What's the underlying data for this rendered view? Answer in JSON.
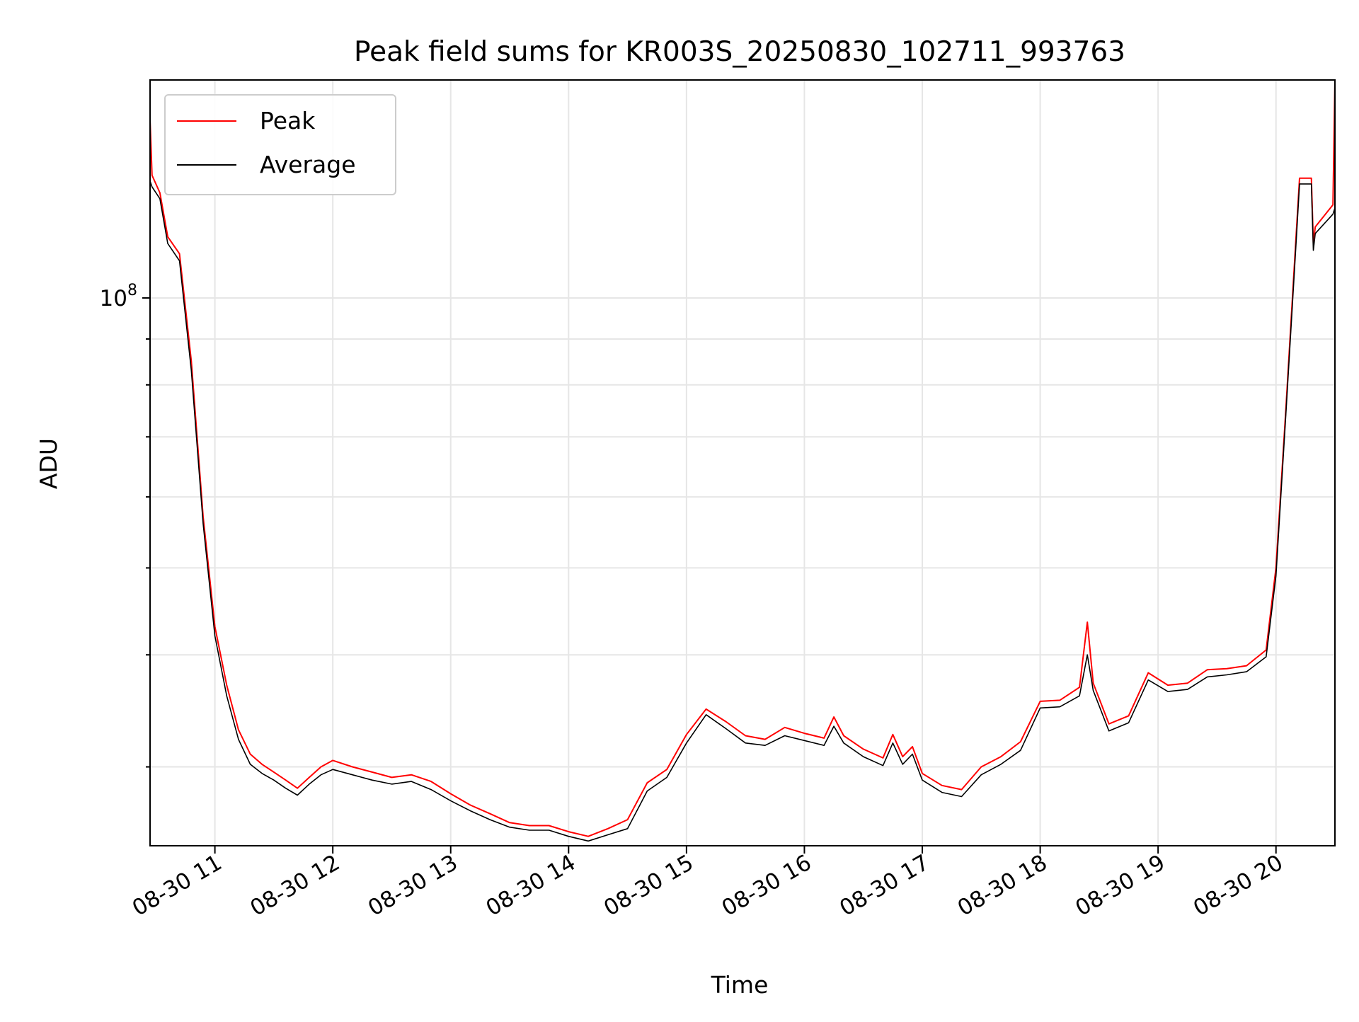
{
  "chart_data": {
    "type": "line",
    "title": "Peak field sums for KR003S_20250830_102711_993763",
    "xlabel": "Time",
    "ylabel": "ADU",
    "x_scale": "time",
    "y_scale": "log",
    "xlim": [
      "2025-08-30 10:27",
      "2025-08-30 20:30"
    ],
    "ylim": [
      24500000,
      175000000
    ],
    "x_ticks": [
      "08-30 11",
      "08-30 12",
      "08-30 13",
      "08-30 14",
      "08-30 15",
      "08-30 16",
      "08-30 17",
      "08-30 18",
      "08-30 19",
      "08-30 20"
    ],
    "y_ticks": [
      {
        "value": 100000000,
        "label_base": "10",
        "label_exp": "8"
      }
    ],
    "y_minor_ticks": [
      30000000,
      40000000,
      50000000,
      60000000,
      70000000,
      80000000,
      90000000
    ],
    "grid": true,
    "legend_position": "upper-left",
    "series": [
      {
        "name": "Peak",
        "color": "#ff0000",
        "points": [
          [
            "2025-08-30 10:27",
            158000000
          ],
          [
            "2025-08-30 10:28",
            137000000
          ],
          [
            "2025-08-30 10:32",
            131000000
          ],
          [
            "2025-08-30 10:36",
            117000000
          ],
          [
            "2025-08-30 10:42",
            112000000
          ],
          [
            "2025-08-30 10:48",
            85000000
          ],
          [
            "2025-08-30 10:54",
            57000000
          ],
          [
            "2025-08-30 11:00",
            43000000
          ],
          [
            "2025-08-30 11:06",
            37000000
          ],
          [
            "2025-08-30 11:12",
            33000000
          ],
          [
            "2025-08-30 11:18",
            31000000
          ],
          [
            "2025-08-30 11:24",
            30200000
          ],
          [
            "2025-08-30 11:30",
            29600000
          ],
          [
            "2025-08-30 11:36",
            29000000
          ],
          [
            "2025-08-30 11:42",
            28400000
          ],
          [
            "2025-08-30 11:48",
            29200000
          ],
          [
            "2025-08-30 11:54",
            30000000
          ],
          [
            "2025-08-30 12:00",
            30500000
          ],
          [
            "2025-08-30 12:10",
            30000000
          ],
          [
            "2025-08-30 12:20",
            29600000
          ],
          [
            "2025-08-30 12:30",
            29200000
          ],
          [
            "2025-08-30 12:40",
            29400000
          ],
          [
            "2025-08-30 12:50",
            28900000
          ],
          [
            "2025-08-30 13:00",
            28000000
          ],
          [
            "2025-08-30 13:10",
            27200000
          ],
          [
            "2025-08-30 13:20",
            26600000
          ],
          [
            "2025-08-30 13:30",
            26000000
          ],
          [
            "2025-08-30 13:40",
            25800000
          ],
          [
            "2025-08-30 13:50",
            25800000
          ],
          [
            "2025-08-30 14:00",
            25400000
          ],
          [
            "2025-08-30 14:10",
            25100000
          ],
          [
            "2025-08-30 14:20",
            25600000
          ],
          [
            "2025-08-30 14:30",
            26200000
          ],
          [
            "2025-08-30 14:40",
            28800000
          ],
          [
            "2025-08-30 14:50",
            29800000
          ],
          [
            "2025-08-30 15:00",
            32600000
          ],
          [
            "2025-08-30 15:10",
            34800000
          ],
          [
            "2025-08-30 15:20",
            33700000
          ],
          [
            "2025-08-30 15:30",
            32500000
          ],
          [
            "2025-08-30 15:40",
            32200000
          ],
          [
            "2025-08-30 15:50",
            33200000
          ],
          [
            "2025-08-30 16:00",
            32700000
          ],
          [
            "2025-08-30 16:10",
            32300000
          ],
          [
            "2025-08-30 16:15",
            34100000
          ],
          [
            "2025-08-30 16:20",
            32500000
          ],
          [
            "2025-08-30 16:30",
            31400000
          ],
          [
            "2025-08-30 16:40",
            30700000
          ],
          [
            "2025-08-30 16:45",
            32600000
          ],
          [
            "2025-08-30 16:50",
            30800000
          ],
          [
            "2025-08-30 16:55",
            31600000
          ],
          [
            "2025-08-30 17:00",
            29500000
          ],
          [
            "2025-08-30 17:10",
            28600000
          ],
          [
            "2025-08-30 17:20",
            28300000
          ],
          [
            "2025-08-30 17:30",
            30000000
          ],
          [
            "2025-08-30 17:40",
            30800000
          ],
          [
            "2025-08-30 17:50",
            32000000
          ],
          [
            "2025-08-30 18:00",
            35500000
          ],
          [
            "2025-08-30 18:10",
            35600000
          ],
          [
            "2025-08-30 18:20",
            36800000
          ],
          [
            "2025-08-30 18:24",
            43500000
          ],
          [
            "2025-08-30 18:27",
            37200000
          ],
          [
            "2025-08-30 18:35",
            33500000
          ],
          [
            "2025-08-30 18:45",
            34200000
          ],
          [
            "2025-08-30 18:55",
            38200000
          ],
          [
            "2025-08-30 19:05",
            37000000
          ],
          [
            "2025-08-30 19:15",
            37200000
          ],
          [
            "2025-08-30 19:25",
            38500000
          ],
          [
            "2025-08-30 19:35",
            38600000
          ],
          [
            "2025-08-30 19:45",
            38900000
          ],
          [
            "2025-08-30 19:55",
            40500000
          ],
          [
            "2025-08-30 20:00",
            50000000
          ],
          [
            "2025-08-30 20:05",
            75000000
          ],
          [
            "2025-08-30 20:10",
            115000000
          ],
          [
            "2025-08-30 20:12",
            136000000
          ],
          [
            "2025-08-30 20:18",
            136000000
          ],
          [
            "2025-08-30 20:19",
            115000000
          ],
          [
            "2025-08-30 20:20",
            120000000
          ],
          [
            "2025-08-30 20:29",
            127000000
          ],
          [
            "2025-08-30 20:30",
            175000000
          ]
        ]
      },
      {
        "name": "Average",
        "color": "#000000",
        "points": [
          [
            "2025-08-30 10:27",
            135000000
          ],
          [
            "2025-08-30 10:28",
            133000000
          ],
          [
            "2025-08-30 10:32",
            129000000
          ],
          [
            "2025-08-30 10:36",
            115000000
          ],
          [
            "2025-08-30 10:42",
            110000000
          ],
          [
            "2025-08-30 10:48",
            83000000
          ],
          [
            "2025-08-30 10:54",
            56000000
          ],
          [
            "2025-08-30 11:00",
            42000000
          ],
          [
            "2025-08-30 11:06",
            36000000
          ],
          [
            "2025-08-30 11:12",
            32200000
          ],
          [
            "2025-08-30 11:18",
            30200000
          ],
          [
            "2025-08-30 11:24",
            29500000
          ],
          [
            "2025-08-30 11:30",
            29000000
          ],
          [
            "2025-08-30 11:36",
            28400000
          ],
          [
            "2025-08-30 11:42",
            27900000
          ],
          [
            "2025-08-30 11:48",
            28700000
          ],
          [
            "2025-08-30 11:54",
            29400000
          ],
          [
            "2025-08-30 12:00",
            29800000
          ],
          [
            "2025-08-30 12:10",
            29400000
          ],
          [
            "2025-08-30 12:20",
            29000000
          ],
          [
            "2025-08-30 12:30",
            28700000
          ],
          [
            "2025-08-30 12:40",
            28900000
          ],
          [
            "2025-08-30 12:50",
            28300000
          ],
          [
            "2025-08-30 13:00",
            27500000
          ],
          [
            "2025-08-30 13:10",
            26800000
          ],
          [
            "2025-08-30 13:20",
            26200000
          ],
          [
            "2025-08-30 13:30",
            25700000
          ],
          [
            "2025-08-30 13:40",
            25500000
          ],
          [
            "2025-08-30 13:50",
            25500000
          ],
          [
            "2025-08-30 14:00",
            25100000
          ],
          [
            "2025-08-30 14:10",
            24800000
          ],
          [
            "2025-08-30 14:20",
            25200000
          ],
          [
            "2025-08-30 14:30",
            25600000
          ],
          [
            "2025-08-30 14:40",
            28200000
          ],
          [
            "2025-08-30 14:50",
            29200000
          ],
          [
            "2025-08-30 15:00",
            31900000
          ],
          [
            "2025-08-30 15:10",
            34300000
          ],
          [
            "2025-08-30 15:20",
            33100000
          ],
          [
            "2025-08-30 15:30",
            31900000
          ],
          [
            "2025-08-30 15:40",
            31700000
          ],
          [
            "2025-08-30 15:50",
            32500000
          ],
          [
            "2025-08-30 16:00",
            32100000
          ],
          [
            "2025-08-30 16:10",
            31700000
          ],
          [
            "2025-08-30 16:15",
            33300000
          ],
          [
            "2025-08-30 16:20",
            31900000
          ],
          [
            "2025-08-30 16:30",
            30800000
          ],
          [
            "2025-08-30 16:40",
            30100000
          ],
          [
            "2025-08-30 16:45",
            31900000
          ],
          [
            "2025-08-30 16:50",
            30200000
          ],
          [
            "2025-08-30 16:55",
            31000000
          ],
          [
            "2025-08-30 17:00",
            29000000
          ],
          [
            "2025-08-30 17:10",
            28100000
          ],
          [
            "2025-08-30 17:20",
            27800000
          ],
          [
            "2025-08-30 17:30",
            29400000
          ],
          [
            "2025-08-30 17:40",
            30200000
          ],
          [
            "2025-08-30 17:50",
            31300000
          ],
          [
            "2025-08-30 18:00",
            34900000
          ],
          [
            "2025-08-30 18:10",
            35000000
          ],
          [
            "2025-08-30 18:20",
            36000000
          ],
          [
            "2025-08-30 18:24",
            40000000
          ],
          [
            "2025-08-30 18:27",
            36500000
          ],
          [
            "2025-08-30 18:35",
            32900000
          ],
          [
            "2025-08-30 18:45",
            33600000
          ],
          [
            "2025-08-30 18:55",
            37500000
          ],
          [
            "2025-08-30 19:05",
            36400000
          ],
          [
            "2025-08-30 19:15",
            36600000
          ],
          [
            "2025-08-30 19:25",
            37800000
          ],
          [
            "2025-08-30 19:35",
            38000000
          ],
          [
            "2025-08-30 19:45",
            38300000
          ],
          [
            "2025-08-30 19:55",
            39800000
          ],
          [
            "2025-08-30 20:00",
            49000000
          ],
          [
            "2025-08-30 20:05",
            74000000
          ],
          [
            "2025-08-30 20:10",
            113000000
          ],
          [
            "2025-08-30 20:12",
            134000000
          ],
          [
            "2025-08-30 20:18",
            134000000
          ],
          [
            "2025-08-30 20:19",
            113000000
          ],
          [
            "2025-08-30 20:20",
            118000000
          ],
          [
            "2025-08-30 20:29",
            124000000
          ],
          [
            "2025-08-30 20:30",
            126000000
          ]
        ]
      }
    ]
  }
}
